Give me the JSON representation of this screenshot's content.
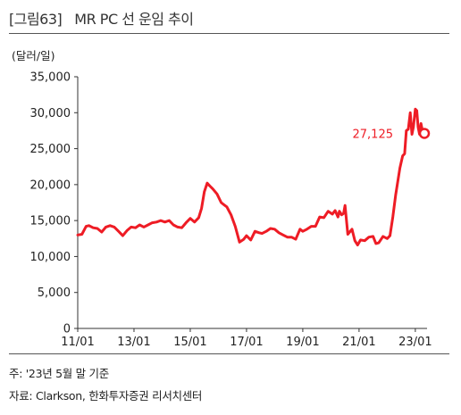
{
  "header": {
    "tag": "[그림63]",
    "title": "MR PC 선 운임 추이"
  },
  "footer": {
    "note": "주: '23년 5월 말 기준",
    "source": "자료: Clarkson, 한화투자증권 리서치센터"
  },
  "chart_data": {
    "type": "line",
    "unit_label": "(달러/일)",
    "xlabel": "",
    "ylabel": "",
    "ylim": [
      0,
      35000
    ],
    "xlim": [
      2011.0,
      2023.4167
    ],
    "y_ticks": [
      0,
      5000,
      10000,
      15000,
      20000,
      25000,
      30000,
      35000
    ],
    "y_tick_labels": [
      "0",
      "5,000",
      "10,000",
      "15,000",
      "20,000",
      "25,000",
      "30,000",
      "35,000"
    ],
    "x_ticks": [
      2011,
      2013,
      2015,
      2017,
      2019,
      2021,
      2023
    ],
    "x_tick_labels": [
      "11/01",
      "13/01",
      "15/01",
      "17/01",
      "19/01",
      "21/01",
      "23/01"
    ],
    "grid": false,
    "line_color": "#ee1c25",
    "series": [
      {
        "name": "",
        "x": [
          2011.0,
          2011.15,
          2011.3,
          2011.4,
          2011.55,
          2011.7,
          2011.85,
          2012.0,
          2012.15,
          2012.3,
          2012.45,
          2012.6,
          2012.75,
          2012.9,
          2013.05,
          2013.2,
          2013.35,
          2013.5,
          2013.65,
          2013.8,
          2013.95,
          2014.1,
          2014.25,
          2014.4,
          2014.55,
          2014.7,
          2014.85,
          2015.0,
          2015.15,
          2015.3,
          2015.4,
          2015.5,
          2015.6,
          2015.7,
          2015.8,
          2015.95,
          2016.1,
          2016.2,
          2016.3,
          2016.45,
          2016.6,
          2016.75,
          2016.9,
          2017.0,
          2017.15,
          2017.3,
          2017.45,
          2017.55,
          2017.7,
          2017.85,
          2018.0,
          2018.15,
          2018.3,
          2018.45,
          2018.6,
          2018.75,
          2018.9,
          2019.0,
          2019.15,
          2019.3,
          2019.45,
          2019.6,
          2019.75,
          2019.9,
          2020.05,
          2020.15,
          2020.25,
          2020.3,
          2020.38,
          2020.45,
          2020.5,
          2020.6,
          2020.75,
          2020.85,
          2020.95,
          2021.05,
          2021.2,
          2021.35,
          2021.5,
          2021.6,
          2021.7,
          2021.85,
          2022.0,
          2022.1,
          2022.2,
          2022.3,
          2022.45,
          2022.55,
          2022.62,
          2022.68,
          2022.75,
          2022.82,
          2022.88,
          2022.93,
          2023.0,
          2023.05,
          2023.1,
          2023.15,
          2023.2,
          2023.25,
          2023.3,
          2023.35,
          2023.4167
        ],
        "values": [
          13000,
          13100,
          14200,
          14300,
          14000,
          13900,
          13400,
          14100,
          14300,
          14100,
          13500,
          12900,
          13600,
          14100,
          14000,
          14400,
          14100,
          14400,
          14700,
          14800,
          15000,
          14800,
          15000,
          14400,
          14100,
          14000,
          14700,
          15300,
          14800,
          15400,
          16700,
          19000,
          20200,
          19800,
          19400,
          18700,
          17500,
          17200,
          16900,
          15800,
          14200,
          12000,
          12400,
          12900,
          12300,
          13500,
          13300,
          13200,
          13500,
          13900,
          13800,
          13300,
          13000,
          12700,
          12700,
          12400,
          13800,
          13500,
          13800,
          14200,
          14200,
          15500,
          15400,
          16300,
          15900,
          16400,
          15500,
          16300,
          15800,
          16000,
          17100,
          13100,
          13800,
          12200,
          11600,
          12300,
          12200,
          12700,
          12800,
          11800,
          11900,
          12800,
          12500,
          12900,
          15500,
          18500,
          22300,
          24000,
          24300,
          27500,
          27700,
          30000,
          27000,
          28000,
          30500,
          30300,
          28000,
          27000,
          28500,
          27500,
          27400,
          27200,
          27125
        ]
      }
    ],
    "annotations": [
      {
        "text": "27,125",
        "x": 2023.4167,
        "y": 27125
      }
    ]
  }
}
